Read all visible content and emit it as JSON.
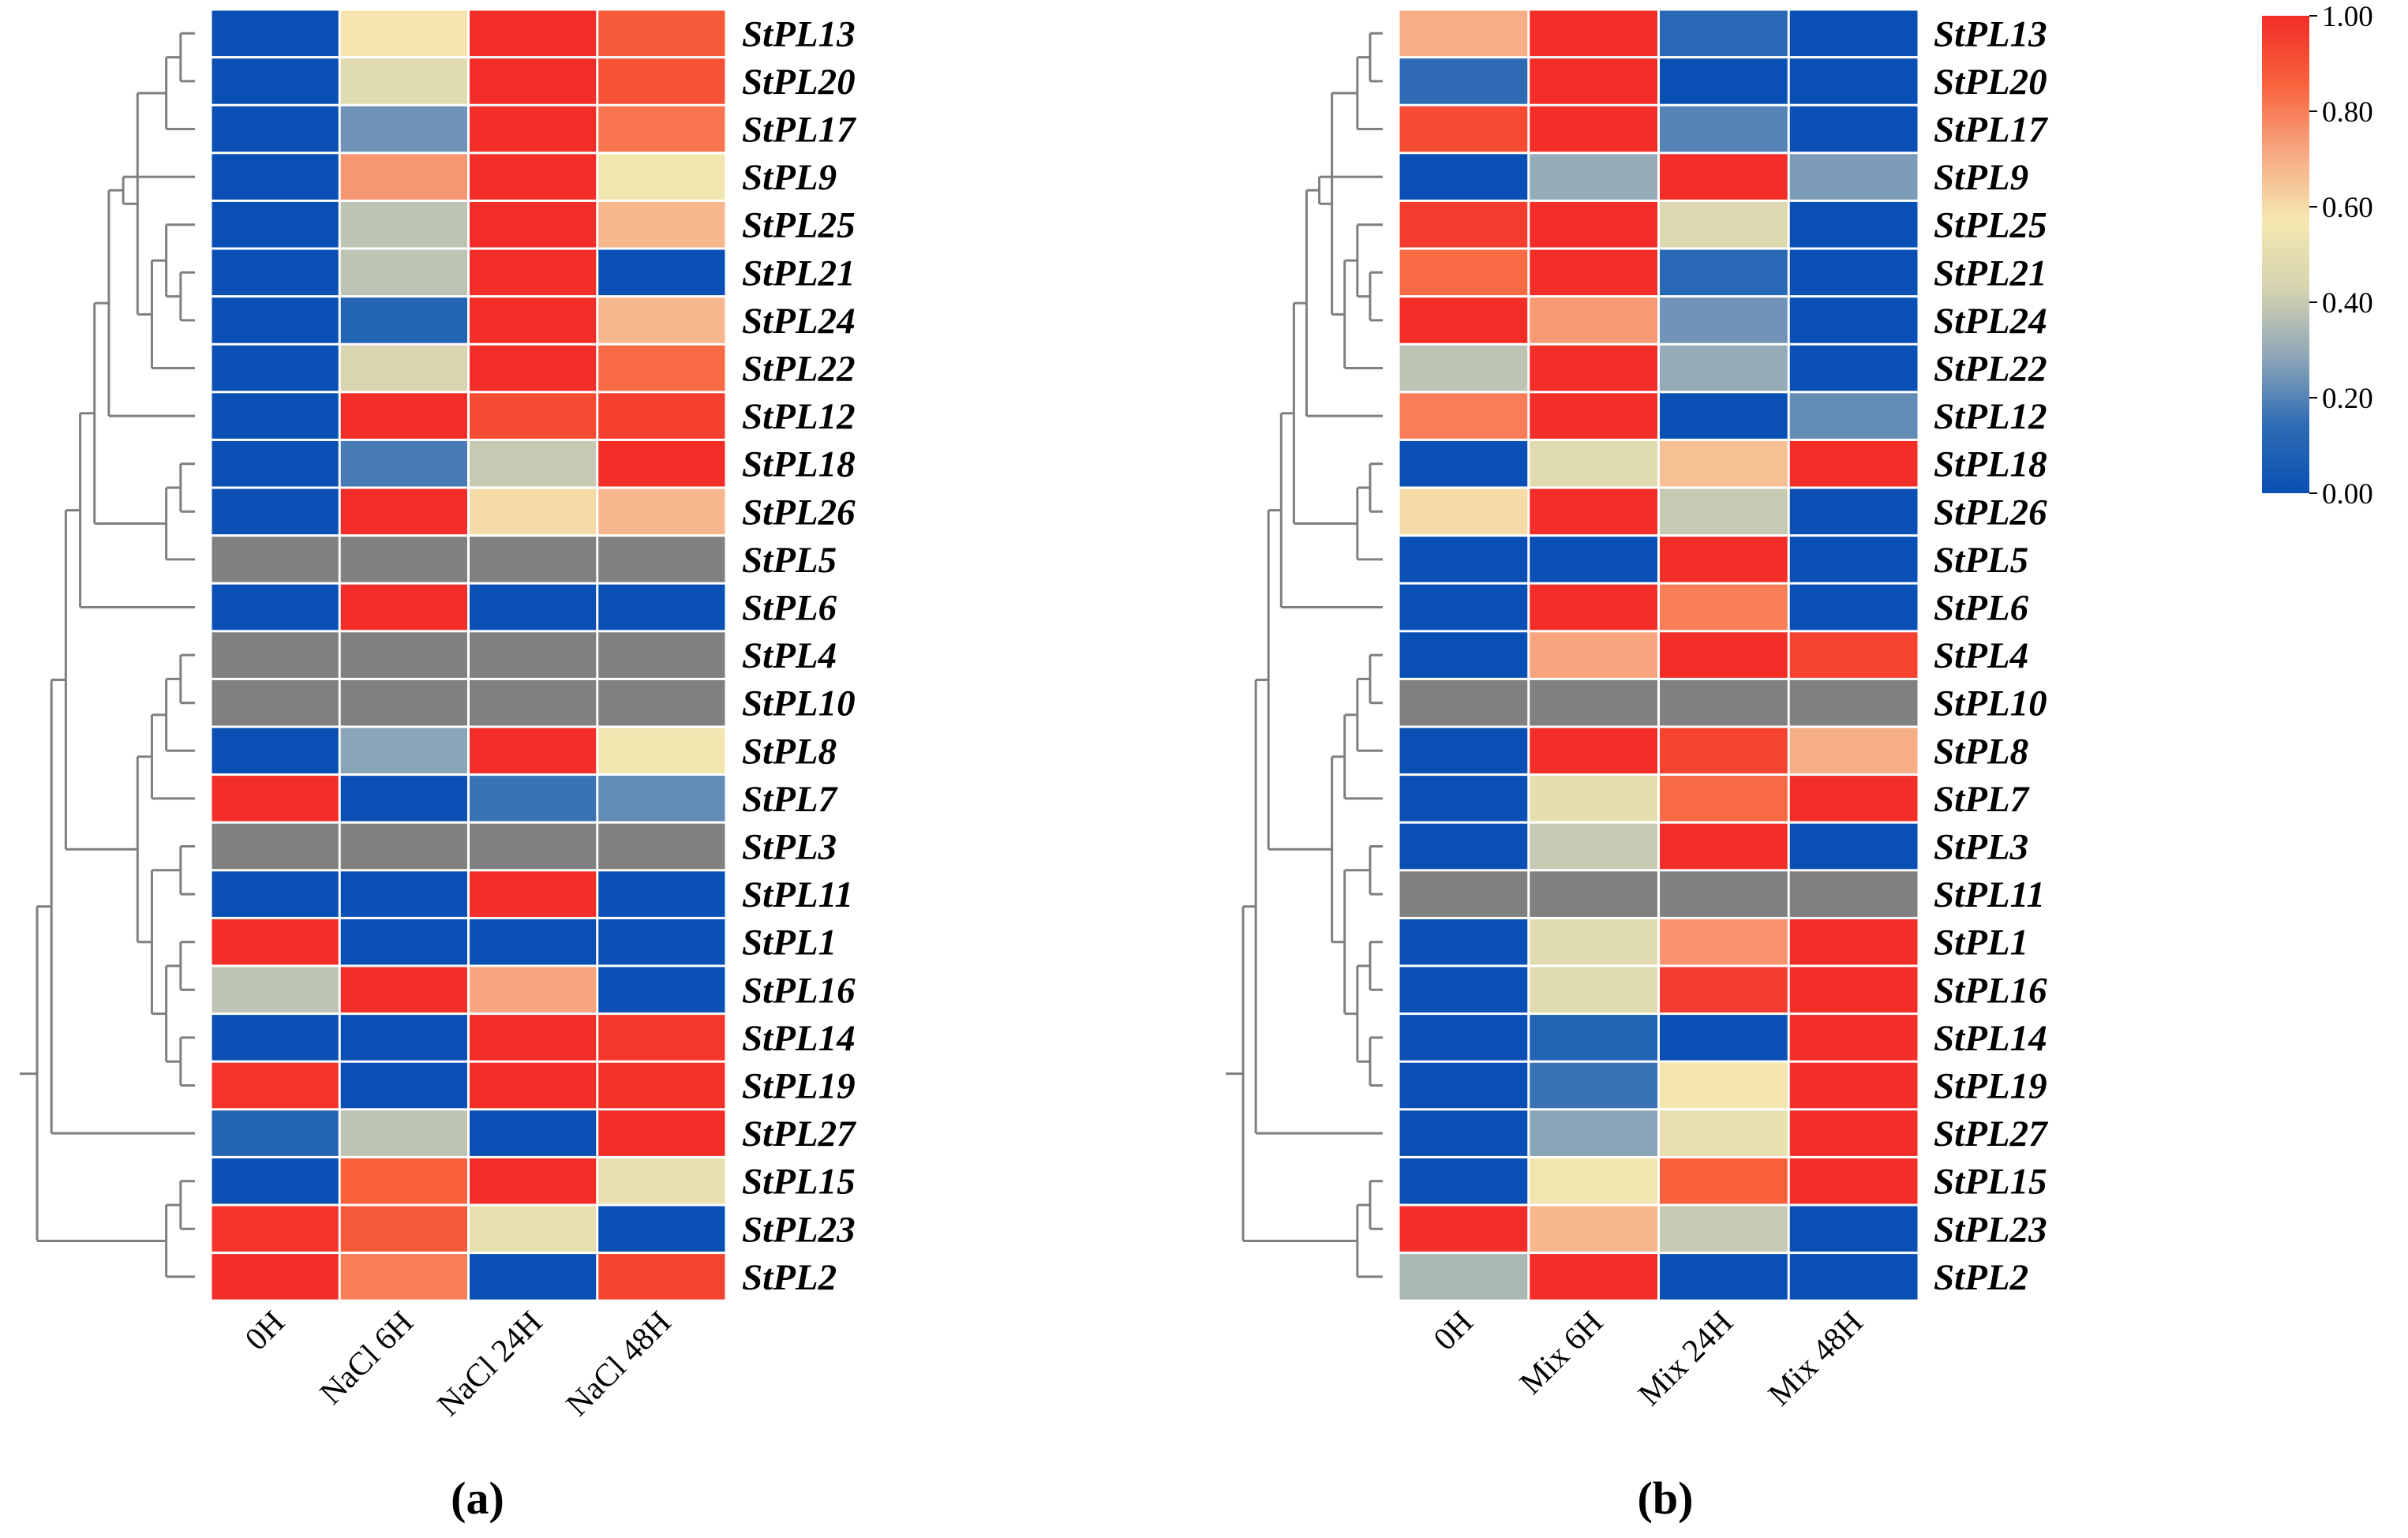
{
  "colorbar": {
    "ticks": [
      "1.00",
      "0.80",
      "0.60",
      "0.40",
      "0.20",
      "0.00"
    ],
    "range": [
      0,
      1
    ],
    "stops": [
      "#0a50b4",
      "#2f6cb4",
      "#8ea6b8",
      "#d5d3b0",
      "#f5e8b0",
      "#f6a882",
      "#f8623c",
      "#f32d28"
    ]
  },
  "missing_color": "#808080",
  "chart_data": [
    {
      "type": "heatmap",
      "panel_label": "(a)",
      "columns": [
        "0H",
        "NaCl 6H",
        "NaCl 24H",
        "NaCl 48H"
      ],
      "rows": [
        "StPL13",
        "StPL20",
        "StPL17",
        "StPL9",
        "StPL25",
        "StPL21",
        "StPL24",
        "StPL22",
        "StPL12",
        "StPL18",
        "StPL26",
        "StPL5",
        "StPL6",
        "StPL4",
        "StPL10",
        "StPL8",
        "StPL7",
        "StPL3",
        "StPL11",
        "StPL1",
        "StPL16",
        "StPL14",
        "StPL19",
        "StPL27",
        "StPL15",
        "StPL23",
        "StPL2"
      ],
      "values": [
        [
          0.0,
          0.58,
          1.0,
          0.88
        ],
        [
          0.0,
          0.48,
          1.0,
          0.9
        ],
        [
          0.0,
          0.24,
          1.0,
          0.82
        ],
        [
          0.0,
          0.75,
          1.0,
          0.56
        ],
        [
          0.0,
          0.38,
          1.0,
          0.68
        ],
        [
          0.0,
          0.38,
          1.0,
          0.0
        ],
        [
          0.0,
          0.1,
          1.0,
          0.68
        ],
        [
          0.0,
          0.44,
          1.0,
          0.84
        ],
        [
          0.0,
          1.0,
          0.92,
          0.95
        ],
        [
          0.0,
          0.18,
          0.4,
          1.0
        ],
        [
          0.0,
          1.0,
          0.6,
          0.68
        ],
        [
          null,
          null,
          null,
          null
        ],
        [
          0.0,
          1.0,
          0.0,
          0.0
        ],
        [
          null,
          null,
          null,
          null
        ],
        [
          null,
          null,
          null,
          null
        ],
        [
          0.0,
          0.28,
          1.0,
          0.56
        ],
        [
          1.0,
          0.0,
          0.16,
          0.22
        ],
        [
          null,
          null,
          null,
          null
        ],
        [
          0.0,
          0.0,
          1.0,
          0.0
        ],
        [
          1.0,
          0.0,
          0.0,
          0.0
        ],
        [
          0.38,
          1.0,
          0.72,
          0.0
        ],
        [
          0.0,
          0.0,
          1.0,
          0.97
        ],
        [
          0.98,
          0.0,
          1.0,
          0.99
        ],
        [
          0.1,
          0.38,
          0.0,
          1.0
        ],
        [
          0.0,
          0.86,
          1.0,
          0.52
        ],
        [
          0.98,
          0.88,
          0.52,
          0.0
        ],
        [
          1.0,
          0.8,
          0.0,
          0.94
        ]
      ],
      "dendrogram": [
        [
          0,
          1
        ],
        [
          2,
          27
        ],
        [
          5,
          6
        ],
        [
          29,
          4
        ],
        [
          30,
          7
        ],
        [
          28,
          31
        ],
        [
          3,
          32
        ],
        [
          33,
          8
        ],
        [
          9,
          10
        ],
        [
          35,
          11
        ],
        [
          34,
          36
        ],
        [
          37,
          12
        ],
        [
          13,
          14
        ],
        [
          39,
          15
        ],
        [
          40,
          16
        ],
        [
          19,
          20
        ],
        [
          21,
          22
        ],
        [
          42,
          43
        ],
        [
          17,
          18
        ],
        [
          45,
          44
        ],
        [
          41,
          46
        ],
        [
          38,
          47
        ],
        [
          48,
          23
        ],
        [
          24,
          25
        ],
        [
          50,
          26
        ],
        [
          49,
          51
        ]
      ]
    },
    {
      "type": "heatmap",
      "panel_label": "(b)",
      "columns": [
        "0H",
        "Mix 6H",
        "Mix 24H",
        "Mix 48H"
      ],
      "rows": [
        "StPL13",
        "StPL20",
        "StPL17",
        "StPL9",
        "StPL25",
        "StPL21",
        "StPL24",
        "StPL22",
        "StPL12",
        "StPL18",
        "StPL26",
        "StPL5",
        "StPL6",
        "StPL4",
        "StPL10",
        "StPL8",
        "StPL7",
        "StPL3",
        "StPL11",
        "StPL1",
        "StPL16",
        "StPL14",
        "StPL19",
        "StPL27",
        "StPL15",
        "StPL23",
        "StPL2"
      ],
      "values": [
        [
          0.7,
          1.0,
          0.12,
          0.0
        ],
        [
          0.14,
          1.0,
          0.0,
          0.0
        ],
        [
          0.92,
          1.0,
          0.2,
          0.0
        ],
        [
          0.0,
          0.3,
          1.0,
          0.26
        ],
        [
          0.96,
          1.0,
          0.46,
          0.0
        ],
        [
          0.84,
          1.0,
          0.12,
          0.0
        ],
        [
          1.0,
          0.74,
          0.24,
          0.0
        ],
        [
          0.38,
          1.0,
          0.3,
          0.0
        ],
        [
          0.8,
          1.0,
          0.0,
          0.22
        ],
        [
          0.0,
          0.48,
          0.66,
          1.0
        ],
        [
          0.6,
          1.0,
          0.4,
          0.0
        ],
        [
          0.0,
          0.0,
          1.0,
          0.0
        ],
        [
          0.0,
          1.0,
          0.8,
          0.0
        ],
        [
          0.0,
          0.72,
          1.0,
          0.94
        ],
        [
          null,
          null,
          null,
          null
        ],
        [
          0.0,
          1.0,
          0.94,
          0.7
        ],
        [
          0.0,
          0.5,
          0.84,
          1.0
        ],
        [
          0.0,
          0.4,
          1.0,
          0.0
        ],
        [
          null,
          null,
          null,
          null
        ],
        [
          0.0,
          0.48,
          0.76,
          1.0
        ],
        [
          0.0,
          0.48,
          0.96,
          1.0
        ],
        [
          0.0,
          0.1,
          0.0,
          1.0
        ],
        [
          0.0,
          0.16,
          0.58,
          1.0
        ],
        [
          0.0,
          0.28,
          0.52,
          1.0
        ],
        [
          0.0,
          0.56,
          0.86,
          1.0
        ],
        [
          1.0,
          0.68,
          0.4,
          0.0
        ],
        [
          0.34,
          1.0,
          0.0,
          0.0
        ]
      ],
      "dendrogram": [
        [
          0,
          1
        ],
        [
          2,
          27
        ],
        [
          5,
          6
        ],
        [
          29,
          4
        ],
        [
          30,
          7
        ],
        [
          28,
          31
        ],
        [
          3,
          32
        ],
        [
          33,
          8
        ],
        [
          9,
          10
        ],
        [
          35,
          11
        ],
        [
          34,
          36
        ],
        [
          37,
          12
        ],
        [
          13,
          14
        ],
        [
          39,
          15
        ],
        [
          40,
          16
        ],
        [
          19,
          20
        ],
        [
          21,
          22
        ],
        [
          42,
          43
        ],
        [
          17,
          18
        ],
        [
          45,
          44
        ],
        [
          41,
          46
        ],
        [
          38,
          47
        ],
        [
          48,
          23
        ],
        [
          24,
          25
        ],
        [
          50,
          26
        ],
        [
          49,
          51
        ]
      ]
    }
  ]
}
